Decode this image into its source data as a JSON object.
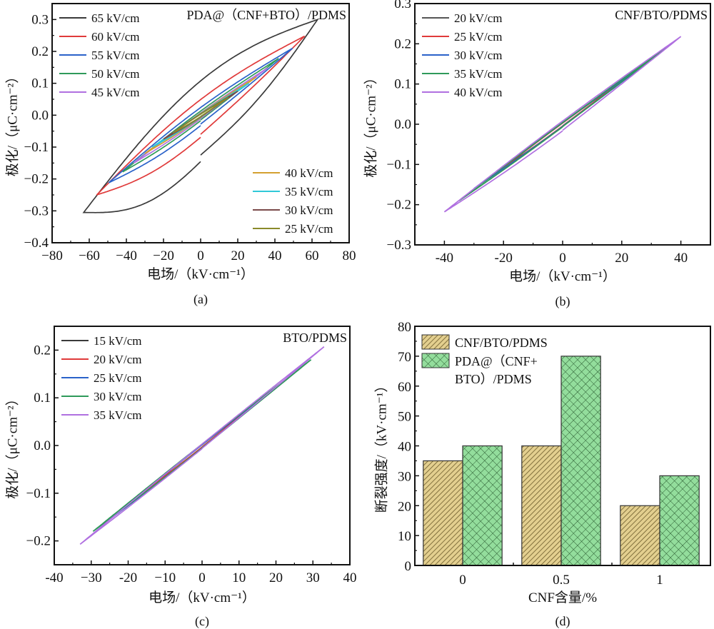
{
  "figure": {
    "panels": [
      "(a)",
      "(b)",
      "(c)",
      "(d)"
    ]
  },
  "chart_data": [
    {
      "id": "a",
      "type": "line",
      "panel_label": "(a)",
      "annotation": "PDA@（CNF+BTO）/PDMS",
      "xlabel": "电场/（kV·cm⁻¹）",
      "ylabel": "极化/（μC·cm⁻²）",
      "xlim": [
        -80,
        80
      ],
      "ylim": [
        -0.4,
        0.35
      ],
      "xticks": [
        -80,
        -60,
        -40,
        -20,
        0,
        20,
        40,
        60,
        80
      ],
      "xtick_labels": [
        "−80",
        "−60",
        "−40",
        "−20",
        "0",
        "20",
        "40",
        "60",
        "80"
      ],
      "yticks": [
        -0.4,
        -0.3,
        -0.2,
        -0.1,
        0.0,
        0.1,
        0.2,
        0.3
      ],
      "ytick_labels": [
        "−0.4",
        "−0.3",
        "−0.2",
        "−0.1",
        "0.0",
        "0.1",
        "0.2",
        "0.3"
      ],
      "legend_groups": [
        {
          "placement": "top-left",
          "entries": [
            0,
            1,
            2,
            3,
            4
          ]
        },
        {
          "placement": "bottom-right",
          "entries": [
            5,
            6,
            7,
            8
          ]
        }
      ],
      "series": [
        {
          "name": "65 kV/cm",
          "color": "#3a3a3a",
          "emax": 63,
          "pmax": 0.3,
          "pr": 0.11,
          "start": -0.125,
          "pmin": -0.305
        },
        {
          "name": "60 kV/cm",
          "color": "#e03a3a",
          "emax": 56,
          "pmax": 0.248,
          "pr": 0.05,
          "start": -0.06,
          "pmin": -0.25
        },
        {
          "name": "55 kV/cm",
          "color": "#2a62c9",
          "emax": 49.5,
          "pmax": 0.21,
          "pr": 0.025,
          "start": -0.028,
          "pmin": -0.212
        },
        {
          "name": "50 kV/cm",
          "color": "#2f9a5a",
          "emax": 42,
          "pmax": 0.178,
          "pr": 0.013,
          "start": -0.015,
          "pmin": -0.178
        },
        {
          "name": "45 kV/cm",
          "color": "#b070e0",
          "emax": 36,
          "pmax": 0.148,
          "pr": 0.008,
          "start": -0.01,
          "pmin": -0.15
        },
        {
          "name": "40 kV/cm",
          "color": "#d4a030",
          "emax": 30,
          "pmax": 0.12,
          "pr": 0.006,
          "start": -0.007,
          "pmin": -0.12
        },
        {
          "name": "35 kV/cm",
          "color": "#30c8d8",
          "emax": 26,
          "pmax": 0.1,
          "pr": 0.005,
          "start": -0.006,
          "pmin": -0.1
        },
        {
          "name": "30 kV/cm",
          "color": "#7a4a4a",
          "emax": 20,
          "pmax": 0.075,
          "pr": 0.004,
          "start": -0.005,
          "pmin": -0.075
        },
        {
          "name": "25 kV/cm",
          "color": "#8a8a2a",
          "emax": 15,
          "pmax": 0.056,
          "pr": 0.003,
          "start": -0.004,
          "pmin": -0.056
        }
      ]
    },
    {
      "id": "b",
      "type": "line",
      "panel_label": "(b)",
      "annotation": "CNF/BTO/PDMS",
      "xlabel": "电场/（kV·cm⁻¹）",
      "ylabel": "极化/（μC·cm⁻²）",
      "xlim": [
        -50,
        50
      ],
      "ylim": [
        -0.3,
        0.3
      ],
      "xticks": [
        -40,
        -20,
        0,
        20,
        40
      ],
      "xtick_labels": [
        "-40",
        "-20",
        "0",
        "20",
        "40"
      ],
      "yticks": [
        -0.3,
        -0.2,
        -0.1,
        0.0,
        0.1,
        0.2,
        0.3
      ],
      "ytick_labels": [
        "−0.3",
        "−0.2",
        "−0.1",
        "0.0",
        "0.1",
        "0.2",
        "0.3"
      ],
      "legend_groups": [
        {
          "placement": "top-left",
          "entries": [
            0,
            1,
            2,
            3,
            4
          ]
        }
      ],
      "series": [
        {
          "name": "20 kV/cm",
          "color": "#555555",
          "emax": 20,
          "pmax": 0.108,
          "pr": 0.003,
          "start": -0.004,
          "pmin": -0.108
        },
        {
          "name": "25 kV/cm",
          "color": "#e03a3a",
          "emax": 25,
          "pmax": 0.135,
          "pr": 0.003,
          "start": -0.004,
          "pmin": -0.135
        },
        {
          "name": "30 kV/cm",
          "color": "#2a62c9",
          "emax": 30,
          "pmax": 0.16,
          "pr": 0.004,
          "start": -0.005,
          "pmin": -0.16
        },
        {
          "name": "35 kV/cm",
          "color": "#2f9a5a",
          "emax": 35,
          "pmax": 0.19,
          "pr": 0.004,
          "start": -0.006,
          "pmin": -0.19
        },
        {
          "name": "40 kV/cm",
          "color": "#b070e0",
          "emax": 40,
          "pmax": 0.218,
          "pr": 0.008,
          "start": -0.015,
          "pmin": -0.218
        }
      ]
    },
    {
      "id": "c",
      "type": "line",
      "panel_label": "(c)",
      "annotation": "BTO/PDMS",
      "xlabel": "电场/（kV·cm⁻¹）",
      "ylabel": "极化/（μC·cm⁻²）",
      "xlim": [
        -40,
        40
      ],
      "ylim": [
        -0.25,
        0.25
      ],
      "xticks": [
        -40,
        -30,
        -20,
        -10,
        0,
        10,
        20,
        30,
        40
      ],
      "xtick_labels": [
        "-40",
        "−30",
        "-20",
        "−10",
        "0",
        "10",
        "20",
        "30",
        "40"
      ],
      "yticks": [
        -0.2,
        -0.1,
        0.0,
        0.1,
        0.2
      ],
      "ytick_labels": [
        "−0.2",
        "−0.1",
        "0.0",
        "0.1",
        "0.2"
      ],
      "legend_groups": [
        {
          "placement": "top-left",
          "entries": [
            0,
            1,
            2,
            3,
            4
          ]
        }
      ],
      "series": [
        {
          "name": "15 kV/cm",
          "color": "#3a3a3a",
          "emax": 15,
          "pmax": 0.092,
          "pr": 0.002,
          "start": -0.003,
          "pmin": -0.092
        },
        {
          "name": "20 kV/cm",
          "color": "#e03a3a",
          "emax": 20,
          "pmax": 0.122,
          "pr": 0.002,
          "start": -0.003,
          "pmin": -0.122
        },
        {
          "name": "25 kV/cm",
          "color": "#2a62c9",
          "emax": 25,
          "pmax": 0.152,
          "pr": 0.003,
          "start": -0.005,
          "pmin": -0.155
        },
        {
          "name": "30 kV/cm",
          "color": "#2f9a5a",
          "emax": 29.5,
          "pmax": 0.18,
          "pr": 0.003,
          "start": -0.005,
          "pmin": -0.18
        },
        {
          "name": "35 kV/cm",
          "color": "#b070e0",
          "emax": 33,
          "pmax": 0.207,
          "pr": 0.003,
          "start": -0.006,
          "pmin": -0.207
        }
      ]
    },
    {
      "id": "d",
      "type": "bar",
      "panel_label": "(d)",
      "xlabel": "CNF含量/%",
      "ylabel": "断裂强度/（kV·cm⁻¹）",
      "categories": [
        "0",
        "0.5",
        "1"
      ],
      "ylim": [
        0,
        80
      ],
      "yticks": [
        0,
        10,
        20,
        30,
        40,
        50,
        60,
        70,
        80
      ],
      "ytick_labels": [
        "0",
        "10",
        "20",
        "30",
        "40",
        "50",
        "60",
        "70",
        "80"
      ],
      "legend_placement": "top-left",
      "series": [
        {
          "name": "CNF/BTO/PDMS",
          "legend_lines": [
            "CNF/BTO/PDMS"
          ],
          "color": "#e3cf8f",
          "hatch_color": "#6b5a2a",
          "pattern": "diagonal",
          "values": [
            35,
            40,
            20
          ]
        },
        {
          "name": "PDA@（CNF+BTO）/PDMS",
          "legend_lines": [
            "PDA@（CNF+",
            "BTO）/PDMS"
          ],
          "color": "#93dd9c",
          "hatch_color": "#2a5a30",
          "pattern": "crosshatch",
          "values": [
            40,
            70,
            30
          ]
        }
      ]
    }
  ]
}
